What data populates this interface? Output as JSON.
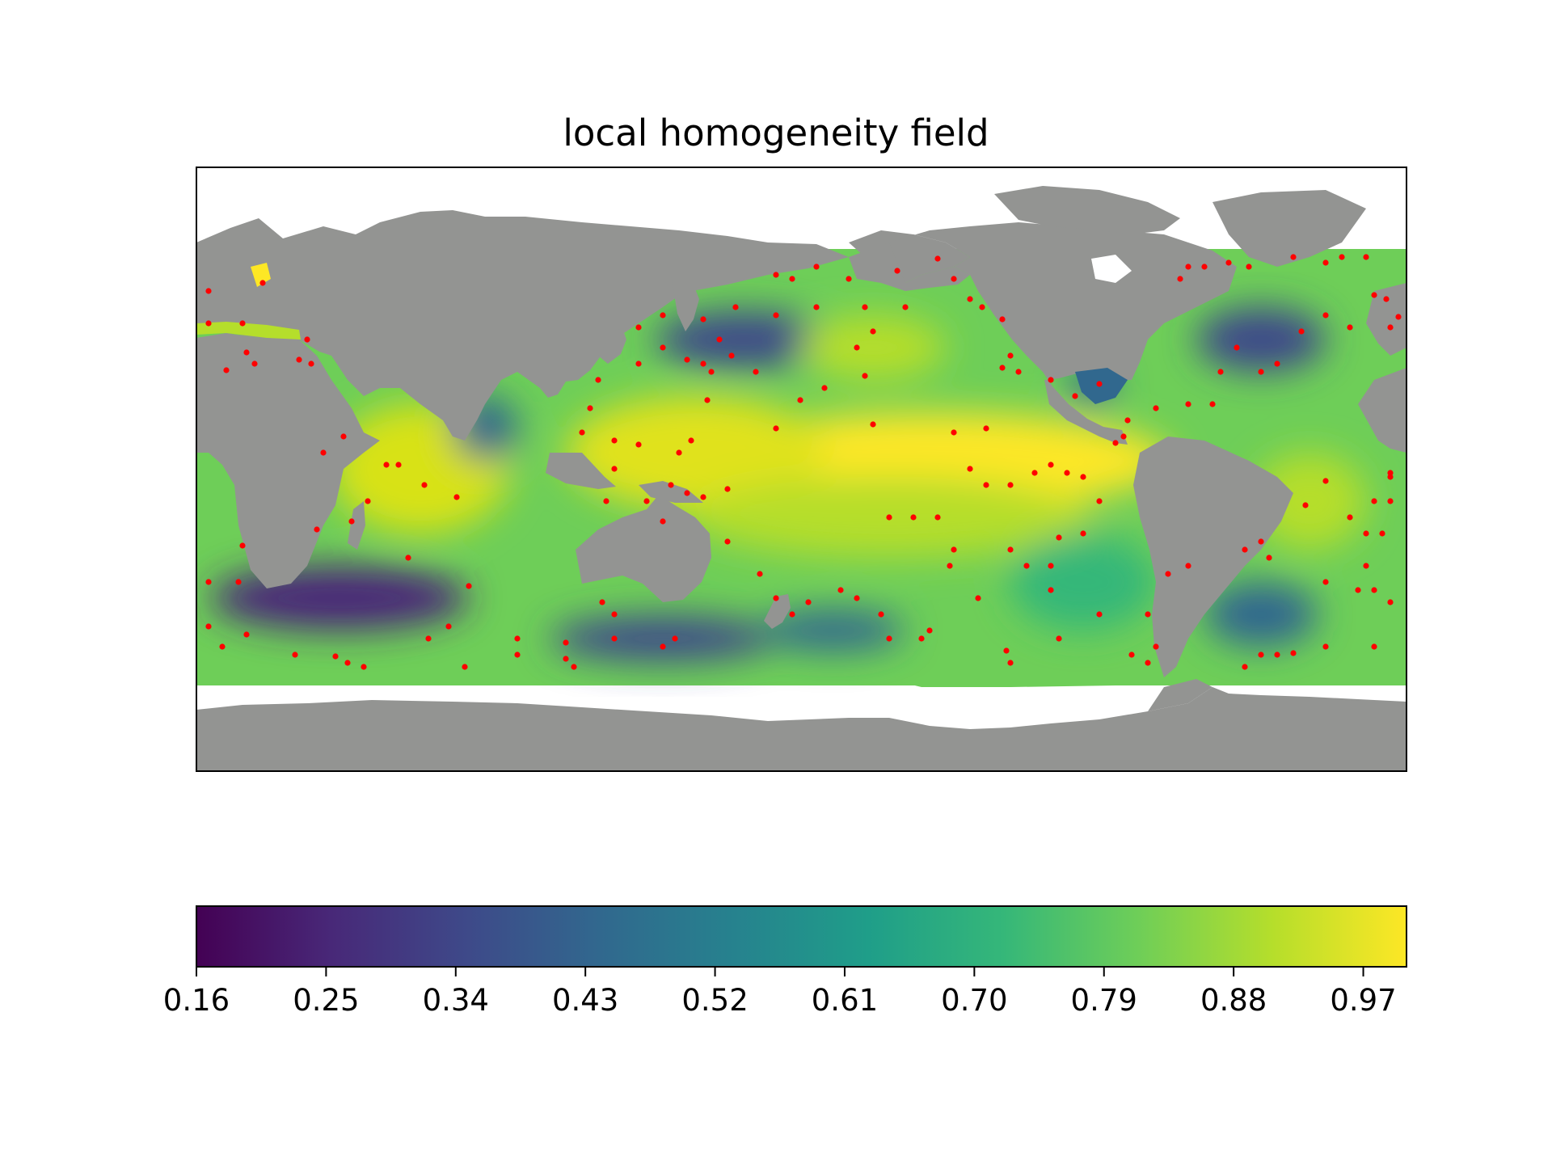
{
  "title": "local homogeneity field",
  "colors": {
    "land": "#939492",
    "nodata": "#ffffff",
    "station": "#ff0000",
    "frame": "#000000"
  },
  "colormap": {
    "name": "viridis",
    "stops": [
      "#440154",
      "#482878",
      "#3e4989",
      "#31688e",
      "#26828e",
      "#1f9e89",
      "#35b779",
      "#6ece58",
      "#b5de2b",
      "#fde725"
    ]
  },
  "colorbar": {
    "range": [
      0.16,
      1.0
    ],
    "ticks": [
      "0.16",
      "0.25",
      "0.34",
      "0.43",
      "0.52",
      "0.61",
      "0.70",
      "0.79",
      "0.88",
      "0.97"
    ]
  }
}
